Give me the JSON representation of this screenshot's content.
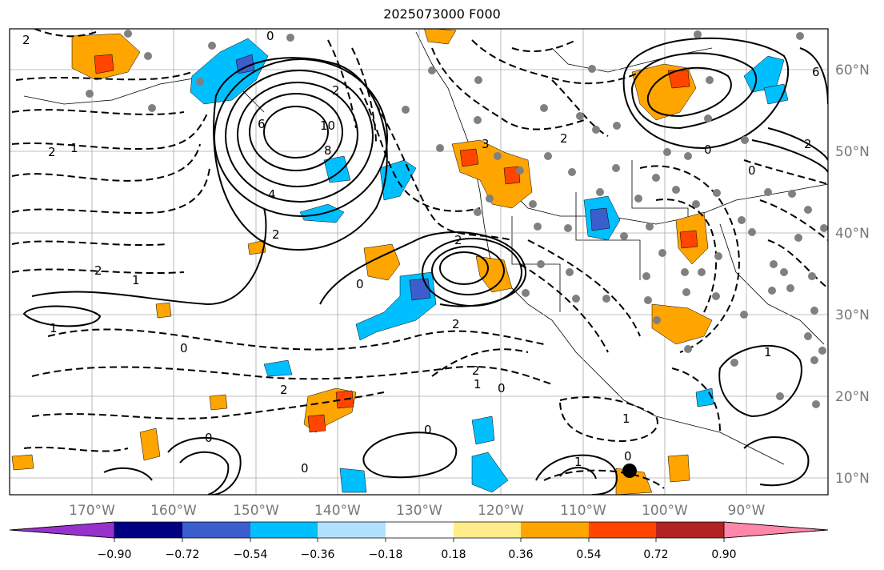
{
  "title": "2025073000 F000",
  "lon_labels": [
    "170°W",
    "160°W",
    "150°W",
    "140°W",
    "130°W",
    "120°W",
    "110°W",
    "100°W",
    "90°W"
  ],
  "lat_labels": [
    "60°N",
    "50°N",
    "40°N",
    "30°N",
    "20°N",
    "10°N"
  ],
  "colorbar": {
    "ticks": [
      "−0.90",
      "−0.72",
      "−0.54",
      "−0.36",
      "−0.18",
      "0.18",
      "0.36",
      "0.54",
      "0.72",
      "0.90"
    ],
    "colors": [
      "#9932cc",
      "#000080",
      "#3a5fcd",
      "#00bfff",
      "#b0e2ff",
      "#ffffff",
      "#ffec8b",
      "#ffa500",
      "#ff4500",
      "#b22222",
      "#ff88aa"
    ]
  },
  "contour_labels": [
    "2",
    "0",
    "2",
    "6",
    "10",
    "8",
    "4",
    "2",
    "2",
    "1",
    "1",
    "0",
    "0",
    "2",
    "2",
    "2",
    "6",
    "2",
    "3",
    "2",
    "1",
    "0",
    "1",
    "0",
    "2",
    "2",
    "1",
    "0",
    "0",
    "0",
    "1",
    "0",
    "0",
    "1"
  ],
  "fill_colors": {
    "orange": "#ffa500",
    "red": "#ff4500",
    "sky": "#00bfff",
    "blue": "#3a5fcd",
    "dark_red": "#b22222"
  }
}
